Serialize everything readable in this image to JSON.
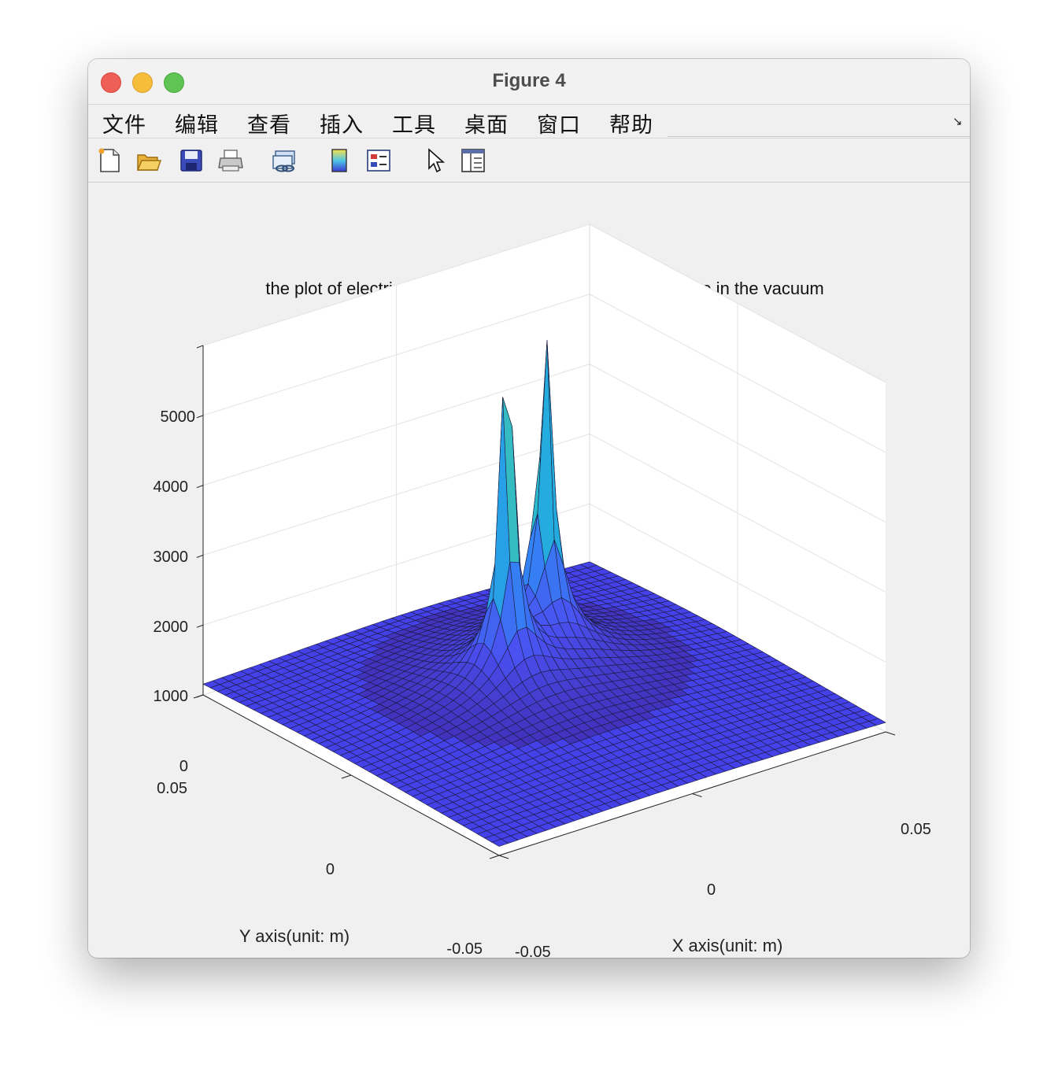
{
  "window": {
    "title": "Figure 4"
  },
  "menu": [
    "文件",
    "编辑",
    "查看",
    "插入",
    "工具",
    "桌面",
    "窗口",
    "帮助"
  ],
  "toolbar": [
    {
      "icon": "new-file-icon"
    },
    {
      "icon": "open-folder-icon"
    },
    {
      "icon": "save-icon"
    },
    {
      "icon": "print-icon"
    },
    {
      "icon": "link-figure-icon"
    },
    {
      "icon": "colorbar-icon"
    },
    {
      "icon": "legend-icon"
    },
    {
      "icon": "pointer-icon"
    },
    {
      "icon": "property-inspector-icon"
    }
  ],
  "chart_data": {
    "type": "surface",
    "title": "the plot of electric potential distribution of two point charge in the vacuum",
    "xlabel": "X axis(unit: m)",
    "ylabel": "Y axis(unit: m)",
    "zlabel": "",
    "xlim": [
      -0.05,
      0.05
    ],
    "ylim": [
      -0.05,
      0.05
    ],
    "zlim": [
      0,
      5000
    ],
    "xticks": [
      "-0.05",
      "0",
      "0.05"
    ],
    "yticks": [
      "-0.05",
      "0",
      "0.05"
    ],
    "zticks": [
      "0",
      "1000",
      "2000",
      "3000",
      "4000",
      "5000"
    ],
    "grid": true,
    "colormap": [
      "#3e26a8",
      "#4a50f0",
      "#2f8ff5",
      "#20b6d6",
      "#7fd17a",
      "#f9fb0e"
    ],
    "surface_color": "#4441e8",
    "series": [
      {
        "name": "",
        "peaks": [
          {
            "z": 4500
          },
          {
            "z": 4850
          }
        ]
      }
    ]
  }
}
